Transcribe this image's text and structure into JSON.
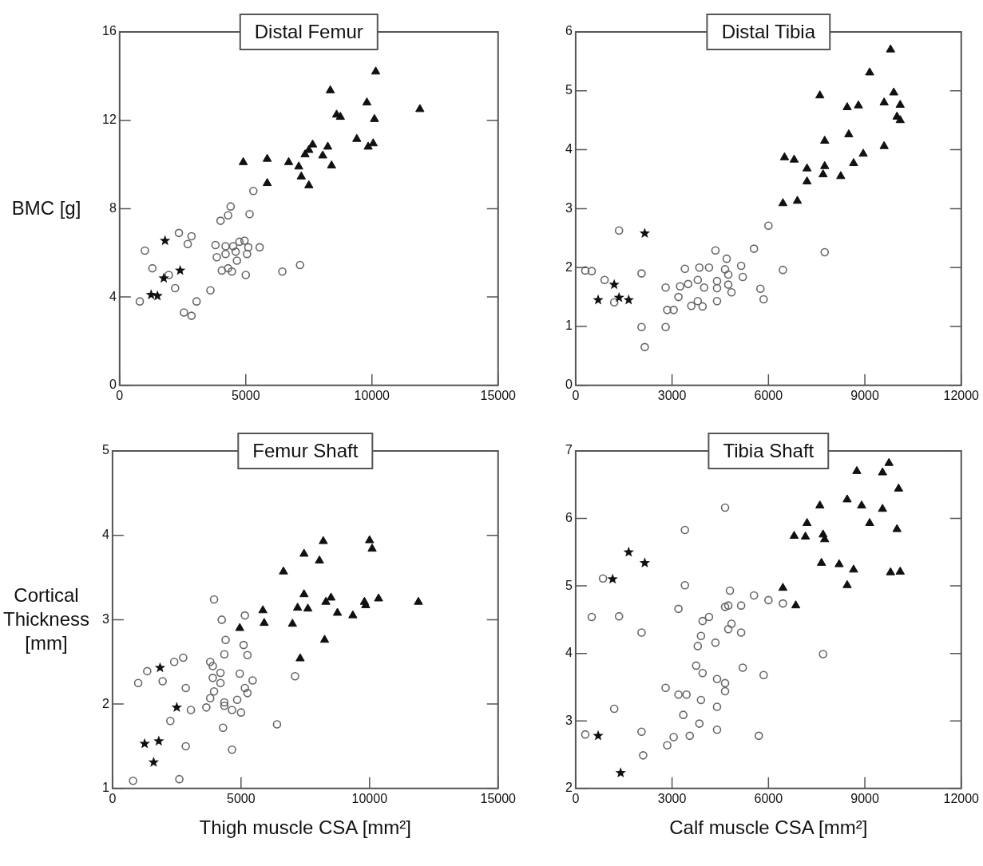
{
  "chart_data": [
    {
      "type": "scatter",
      "title": "Distal Femur",
      "ylabel": "BMC [g]",
      "xlim": [
        0,
        15000
      ],
      "xticks": [
        0,
        5000,
        10000,
        15000
      ],
      "ylim": [
        0,
        16
      ],
      "yticks": [
        0,
        4,
        8,
        12,
        16
      ],
      "series": [
        {
          "color": "#666666",
          "marker": "circle",
          "x": [
            5300,
            4400,
            4300,
            4000,
            5150,
            2350,
            2850,
            2700,
            1000,
            3800,
            4200,
            4500,
            4750,
            4950,
            5100,
            5550,
            4600,
            5050,
            3850,
            4200,
            4650,
            4050,
            4300,
            4450,
            5000,
            6450,
            7150,
            1300,
            1950,
            2200,
            3600,
            800,
            3050,
            2550,
            2850
          ],
          "values": [
            8.8,
            8.1,
            7.7,
            7.45,
            7.75,
            6.9,
            6.75,
            6.4,
            6.1,
            6.35,
            6.3,
            6.3,
            6.5,
            6.55,
            6.25,
            6.25,
            6.05,
            5.95,
            5.8,
            5.95,
            5.65,
            5.2,
            5.3,
            5.15,
            5.0,
            5.15,
            5.45,
            5.3,
            5.0,
            4.4,
            4.3,
            3.8,
            3.8,
            3.3,
            3.15
          ]
        },
        {
          "color": "#111111",
          "marker": "star",
          "x": [
            1800,
            2400,
            1750,
            1250,
            1500
          ],
          "values": [
            6.55,
            5.2,
            4.85,
            4.1,
            4.05
          ]
        },
        {
          "color": "#111111",
          "marker": "triangle",
          "x": [
            10150,
            8350,
            9800,
            11900,
            8600,
            8750,
            10100,
            9400,
            7650,
            8250,
            9850,
            10050,
            7500,
            7350,
            8050,
            4900,
            5850,
            6700,
            7100,
            8400,
            7200,
            7500,
            5850
          ],
          "values": [
            14.2,
            13.35,
            12.8,
            12.5,
            12.25,
            12.15,
            12.05,
            11.15,
            10.9,
            10.8,
            10.8,
            10.95,
            10.65,
            10.45,
            10.4,
            10.1,
            10.25,
            10.1,
            9.9,
            9.95,
            9.45,
            9.05,
            9.15
          ]
        }
      ]
    },
    {
      "type": "scatter",
      "title": "Distal Tibia",
      "xlim": [
        0,
        12000
      ],
      "xticks": [
        0,
        3000,
        6000,
        9000,
        12000
      ],
      "ylim": [
        0,
        6
      ],
      "yticks": [
        0,
        1,
        2,
        3,
        4,
        5,
        6
      ],
      "series": [
        {
          "color": "#666666",
          "marker": "circle",
          "x": [
            1350,
            300,
            500,
            900,
            1200,
            2050,
            2050,
            2150,
            2800,
            2800,
            2850,
            3050,
            3200,
            3250,
            3400,
            3500,
            3600,
            3800,
            3800,
            3950,
            3850,
            4000,
            4150,
            4350,
            4400,
            4400,
            4400,
            4700,
            4650,
            4750,
            4750,
            4850,
            5150,
            5200,
            5550,
            6000,
            5750,
            5850,
            6450,
            7750
          ],
          "values": [
            2.63,
            1.95,
            1.94,
            1.79,
            1.41,
            1.9,
            0.99,
            0.65,
            0.99,
            1.66,
            1.28,
            1.28,
            1.5,
            1.68,
            1.98,
            1.72,
            1.35,
            1.79,
            1.43,
            1.34,
            2.0,
            1.66,
            2.0,
            2.29,
            1.77,
            1.65,
            1.43,
            2.15,
            1.97,
            1.88,
            1.71,
            1.58,
            2.03,
            1.84,
            2.32,
            2.71,
            1.64,
            1.46,
            1.96,
            2.26
          ]
        },
        {
          "color": "#111111",
          "marker": "star",
          "x": [
            2150,
            1200,
            700,
            1350,
            1650
          ],
          "values": [
            2.58,
            1.71,
            1.45,
            1.49,
            1.45
          ]
        },
        {
          "color": "#111111",
          "marker": "triangle",
          "x": [
            9800,
            9150,
            7600,
            9900,
            8450,
            8800,
            9600,
            10100,
            10000,
            10100,
            7750,
            8500,
            9600,
            6500,
            6800,
            8950,
            7200,
            7750,
            8650,
            7700,
            8250,
            7200,
            6450,
            6900
          ],
          "values": [
            5.7,
            5.31,
            4.92,
            4.97,
            4.72,
            4.75,
            4.8,
            4.76,
            4.56,
            4.5,
            4.15,
            4.26,
            4.06,
            3.87,
            3.83,
            3.93,
            3.68,
            3.72,
            3.77,
            3.58,
            3.55,
            3.46,
            3.09,
            3.13
          ]
        }
      ]
    },
    {
      "type": "scatter",
      "title": "Femur Shaft",
      "xlabel": "Thigh muscle CSA [mm²]",
      "ylabel": "Cortical Thickness [mm]",
      "xlim": [
        0,
        15000
      ],
      "xticks": [
        0,
        5000,
        10000,
        15000
      ],
      "ylim": [
        1,
        5
      ],
      "yticks": [
        1,
        2,
        3,
        4,
        5
      ],
      "series": [
        {
          "color": "#666666",
          "marker": "circle",
          "x": [
            3950,
            4250,
            5150,
            4400,
            5100,
            4350,
            5250,
            2750,
            2400,
            1350,
            3800,
            3900,
            4200,
            3900,
            4950,
            1000,
            1950,
            4200,
            5450,
            2850,
            5150,
            5250,
            3950,
            3800,
            4850,
            4350,
            4350,
            4650,
            3650,
            3050,
            5000,
            2250,
            6400,
            4300,
            2850,
            4650,
            800,
            2600,
            7100
          ],
          "values": [
            3.24,
            3.0,
            3.05,
            2.76,
            2.7,
            2.59,
            2.58,
            2.55,
            2.5,
            2.39,
            2.5,
            2.45,
            2.37,
            2.31,
            2.36,
            2.25,
            2.27,
            2.25,
            2.28,
            2.19,
            2.19,
            2.13,
            2.15,
            2.07,
            2.05,
            2.02,
            1.98,
            1.93,
            1.96,
            1.93,
            1.9,
            1.8,
            1.76,
            1.72,
            1.5,
            1.46,
            1.09,
            1.11,
            2.33
          ]
        },
        {
          "color": "#111111",
          "marker": "star",
          "x": [
            1850,
            2500,
            1250,
            1800,
            1600
          ],
          "values": [
            2.43,
            1.96,
            1.53,
            1.56,
            1.31
          ]
        },
        {
          "color": "#111111",
          "marker": "triangle",
          "x": [
            8200,
            10000,
            10100,
            7450,
            8050,
            6650,
            7450,
            8500,
            8300,
            9800,
            9850,
            10350,
            11900,
            7200,
            7600,
            8750,
            9350,
            5850,
            5900,
            4950,
            7000,
            8250,
            7300
          ],
          "values": [
            3.93,
            3.94,
            3.84,
            3.78,
            3.7,
            3.57,
            3.3,
            3.26,
            3.21,
            3.21,
            3.17,
            3.25,
            3.21,
            3.14,
            3.13,
            3.08,
            3.05,
            3.11,
            2.96,
            2.9,
            2.95,
            2.76,
            2.54
          ]
        }
      ]
    },
    {
      "type": "scatter",
      "title": "Tibia Shaft",
      "xlabel": "Calf muscle CSA [mm²]",
      "xlim": [
        0,
        12000
      ],
      "xticks": [
        0,
        3000,
        6000,
        9000,
        12000
      ],
      "ylim": [
        2,
        7
      ],
      "yticks": [
        2,
        3,
        4,
        5,
        6,
        7
      ],
      "series": [
        {
          "color": "#666666",
          "marker": "circle",
          "x": [
            4650,
            3400,
            850,
            3400,
            4800,
            5550,
            6000,
            6450,
            4650,
            4750,
            5150,
            3200,
            500,
            1350,
            4150,
            3950,
            4850,
            4750,
            2050,
            5150,
            3900,
            4350,
            3800,
            7700,
            3750,
            5200,
            3950,
            5850,
            4400,
            4650,
            4650,
            2800,
            3200,
            3450,
            3900,
            1200,
            4400,
            3350,
            3850,
            300,
            2050,
            4400,
            3050,
            3550,
            5700,
            2850,
            2100
          ],
          "values": [
            6.16,
            5.83,
            5.11,
            5.01,
            4.93,
            4.86,
            4.79,
            4.74,
            4.69,
            4.71,
            4.71,
            4.66,
            4.54,
            4.55,
            4.54,
            4.48,
            4.44,
            4.36,
            4.31,
            4.31,
            4.26,
            4.16,
            4.11,
            3.99,
            3.82,
            3.79,
            3.71,
            3.68,
            3.62,
            3.56,
            3.44,
            3.49,
            3.39,
            3.39,
            3.31,
            3.18,
            3.21,
            3.09,
            2.96,
            2.8,
            2.84,
            2.87,
            2.76,
            2.78,
            2.78,
            2.64,
            2.49
          ]
        },
        {
          "color": "#111111",
          "marker": "star",
          "x": [
            1650,
            2150,
            1150,
            700,
            1400
          ],
          "values": [
            5.5,
            5.34,
            5.1,
            2.78,
            2.23
          ]
        },
        {
          "color": "#111111",
          "marker": "triangle",
          "x": [
            9750,
            8750,
            9550,
            10050,
            8450,
            7600,
            8900,
            9550,
            7200,
            9150,
            10000,
            6800,
            7150,
            7700,
            7750,
            7650,
            8200,
            8650,
            9800,
            10100,
            8450,
            6450,
            6850
          ],
          "values": [
            6.82,
            6.7,
            6.68,
            6.44,
            6.28,
            6.19,
            6.19,
            6.14,
            5.93,
            5.93,
            5.84,
            5.74,
            5.73,
            5.76,
            5.69,
            5.34,
            5.32,
            5.24,
            5.2,
            5.21,
            5.01,
            4.97,
            4.71
          ]
        }
      ]
    }
  ]
}
